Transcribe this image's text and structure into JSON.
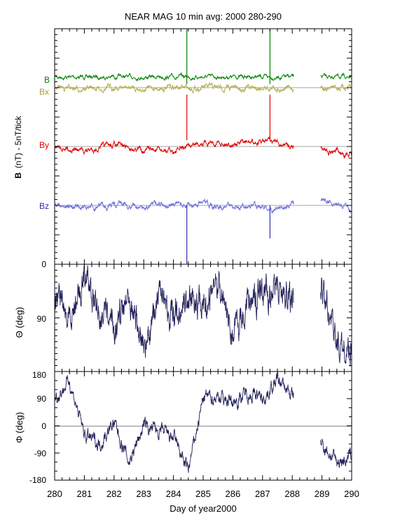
{
  "chart_data": [
    {
      "type": "line",
      "title": "NEAR MAG 10 min avg: 2000 280-290",
      "ylabel_bold": "B",
      "ylabel_rest": "(nT) - 5nT/tick",
      "xlim": [
        280,
        290
      ],
      "grid": false,
      "series": [
        {
          "name": "B",
          "color": "#008000",
          "baseline": 0.2,
          "x": [
            280,
            281,
            282,
            283,
            284,
            284.5,
            285,
            286,
            287,
            287.25,
            288,
            289,
            290
          ],
          "values": [
            0.2,
            0.18,
            0.21,
            0.17,
            0.19,
            0.2,
            0.18,
            0.21,
            0.19,
            0.16,
            0.19,
            0.23,
            0.21
          ]
        },
        {
          "name": "Bx",
          "color": "#b0b050",
          "baseline": 0.0,
          "x": [
            280,
            281,
            282,
            283,
            284,
            284.5,
            285,
            286,
            287,
            288,
            289,
            290
          ],
          "values": [
            0.05,
            -0.15,
            0.02,
            -0.1,
            0.03,
            -0.05,
            0.02,
            -0.08,
            0.04,
            -0.05,
            0.1,
            -0.05
          ]
        },
        {
          "name": "By",
          "color": "#e00000",
          "baseline": 0.0,
          "x": [
            280,
            281,
            282,
            283,
            284,
            284.5,
            285,
            286,
            287,
            287.25,
            288,
            289,
            290
          ],
          "values": [
            0.05,
            -0.3,
            0.1,
            -0.2,
            -0.35,
            0.0,
            0.35,
            0.2,
            0.25,
            0.3,
            0.05,
            -0.1,
            -0.6
          ]
        },
        {
          "name": "Bz",
          "color": "#6e6ee0",
          "baseline": 0.0,
          "x": [
            280,
            281,
            282,
            283,
            284,
            284.5,
            285,
            286,
            287,
            287.25,
            288,
            289,
            290
          ],
          "values": [
            0.05,
            -0.3,
            0.1,
            -0.2,
            0.15,
            -0.05,
            0.1,
            -0.15,
            0.05,
            -0.4,
            0.0,
            0.6,
            -0.4
          ]
        }
      ],
      "labels_left": [
        "B",
        "Bx",
        "By",
        "Bz"
      ]
    },
    {
      "type": "line",
      "ylabel": "Θ (deg)",
      "ylim": [
        0,
        180
      ],
      "yticks": [
        "0",
        "90"
      ],
      "series": [
        {
          "name": "Theta",
          "color": "#22225a",
          "x": [
            280,
            280.5,
            281,
            281.5,
            282,
            282.5,
            283,
            283.5,
            284,
            284.5,
            285,
            285.5,
            286,
            286.5,
            287,
            287.5,
            288,
            289,
            289.5,
            290
          ],
          "values": [
            40,
            100,
            20,
            80,
            110,
            40,
            150,
            60,
            90,
            50,
            70,
            30,
            120,
            60,
            50,
            40,
            60,
            45,
            130,
            150
          ]
        }
      ]
    },
    {
      "type": "line",
      "ylabel": "Φ (deg)",
      "ylim": [
        -180,
        180
      ],
      "yticks": [
        "180",
        "90",
        "0",
        "-90",
        "-180"
      ],
      "xlabel": "Day of year2000",
      "xticks": [
        "280",
        "281",
        "282",
        "283",
        "284",
        "285",
        "286",
        "287",
        "288",
        "289",
        "290"
      ],
      "series": [
        {
          "name": "Phi",
          "color": "#22225a",
          "x": [
            280,
            280.5,
            281,
            281.5,
            282,
            282.5,
            283,
            283.5,
            284,
            284.5,
            285,
            285.5,
            286,
            286.5,
            287,
            287.5,
            288,
            289,
            289.5,
            290
          ],
          "values": [
            90,
            150,
            -30,
            -60,
            10,
            -120,
            0,
            -20,
            -40,
            -150,
            90,
            100,
            80,
            110,
            90,
            150,
            100,
            -60,
            -120,
            -100
          ]
        }
      ]
    }
  ]
}
